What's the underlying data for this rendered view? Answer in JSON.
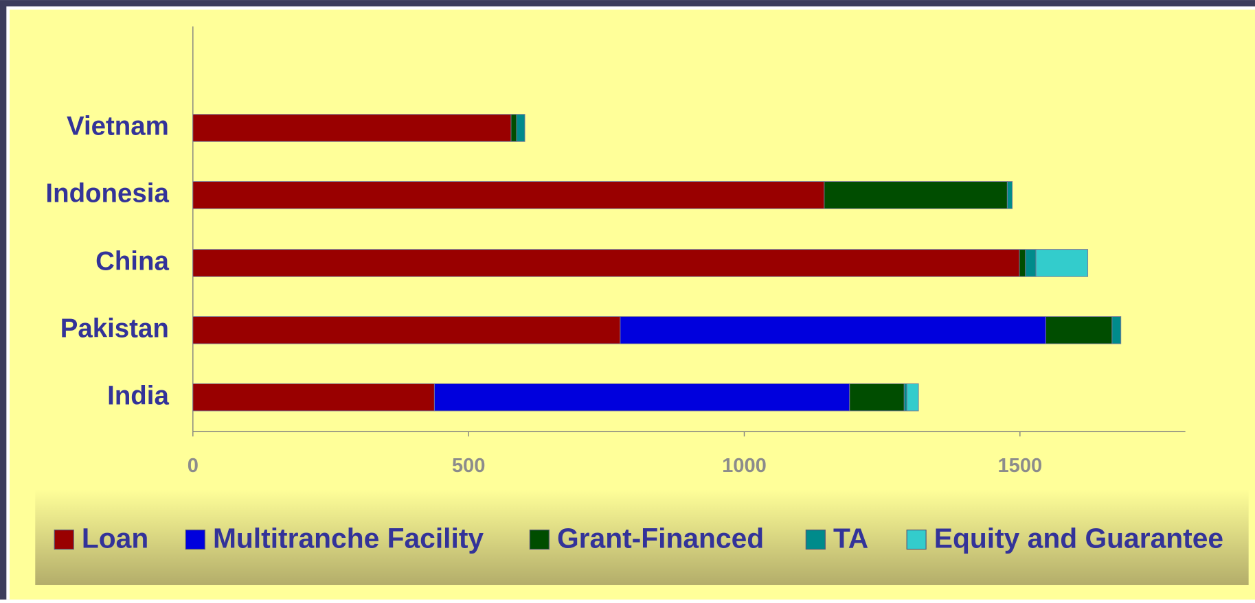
{
  "chart_data": {
    "type": "bar",
    "orientation": "horizontal",
    "stacked": true,
    "categories": [
      "India",
      "Pakistan",
      "China",
      "Indonesia",
      "Vietnam"
    ],
    "series": [
      {
        "name": "Loan",
        "color": "#990000",
        "values": [
          438,
          775,
          1499,
          1145,
          577
        ]
      },
      {
        "name": "Multitranche Facility",
        "color": "#0000dd",
        "values": [
          753,
          772,
          0,
          0,
          0
        ]
      },
      {
        "name": "Grant-Financed",
        "color": "#004d00",
        "values": [
          99,
          120,
          11,
          332,
          10
        ]
      },
      {
        "name": "TA",
        "color": "#008b8b",
        "values": [
          5,
          16,
          19,
          9,
          15
        ]
      },
      {
        "name": "Equity and Guarantee",
        "color": "#33cccc",
        "values": [
          21,
          0,
          94,
          0,
          0
        ]
      }
    ],
    "xlim": [
      0,
      1800
    ],
    "xticks": [
      0,
      500,
      1000,
      1500
    ],
    "legend": "bottom"
  }
}
